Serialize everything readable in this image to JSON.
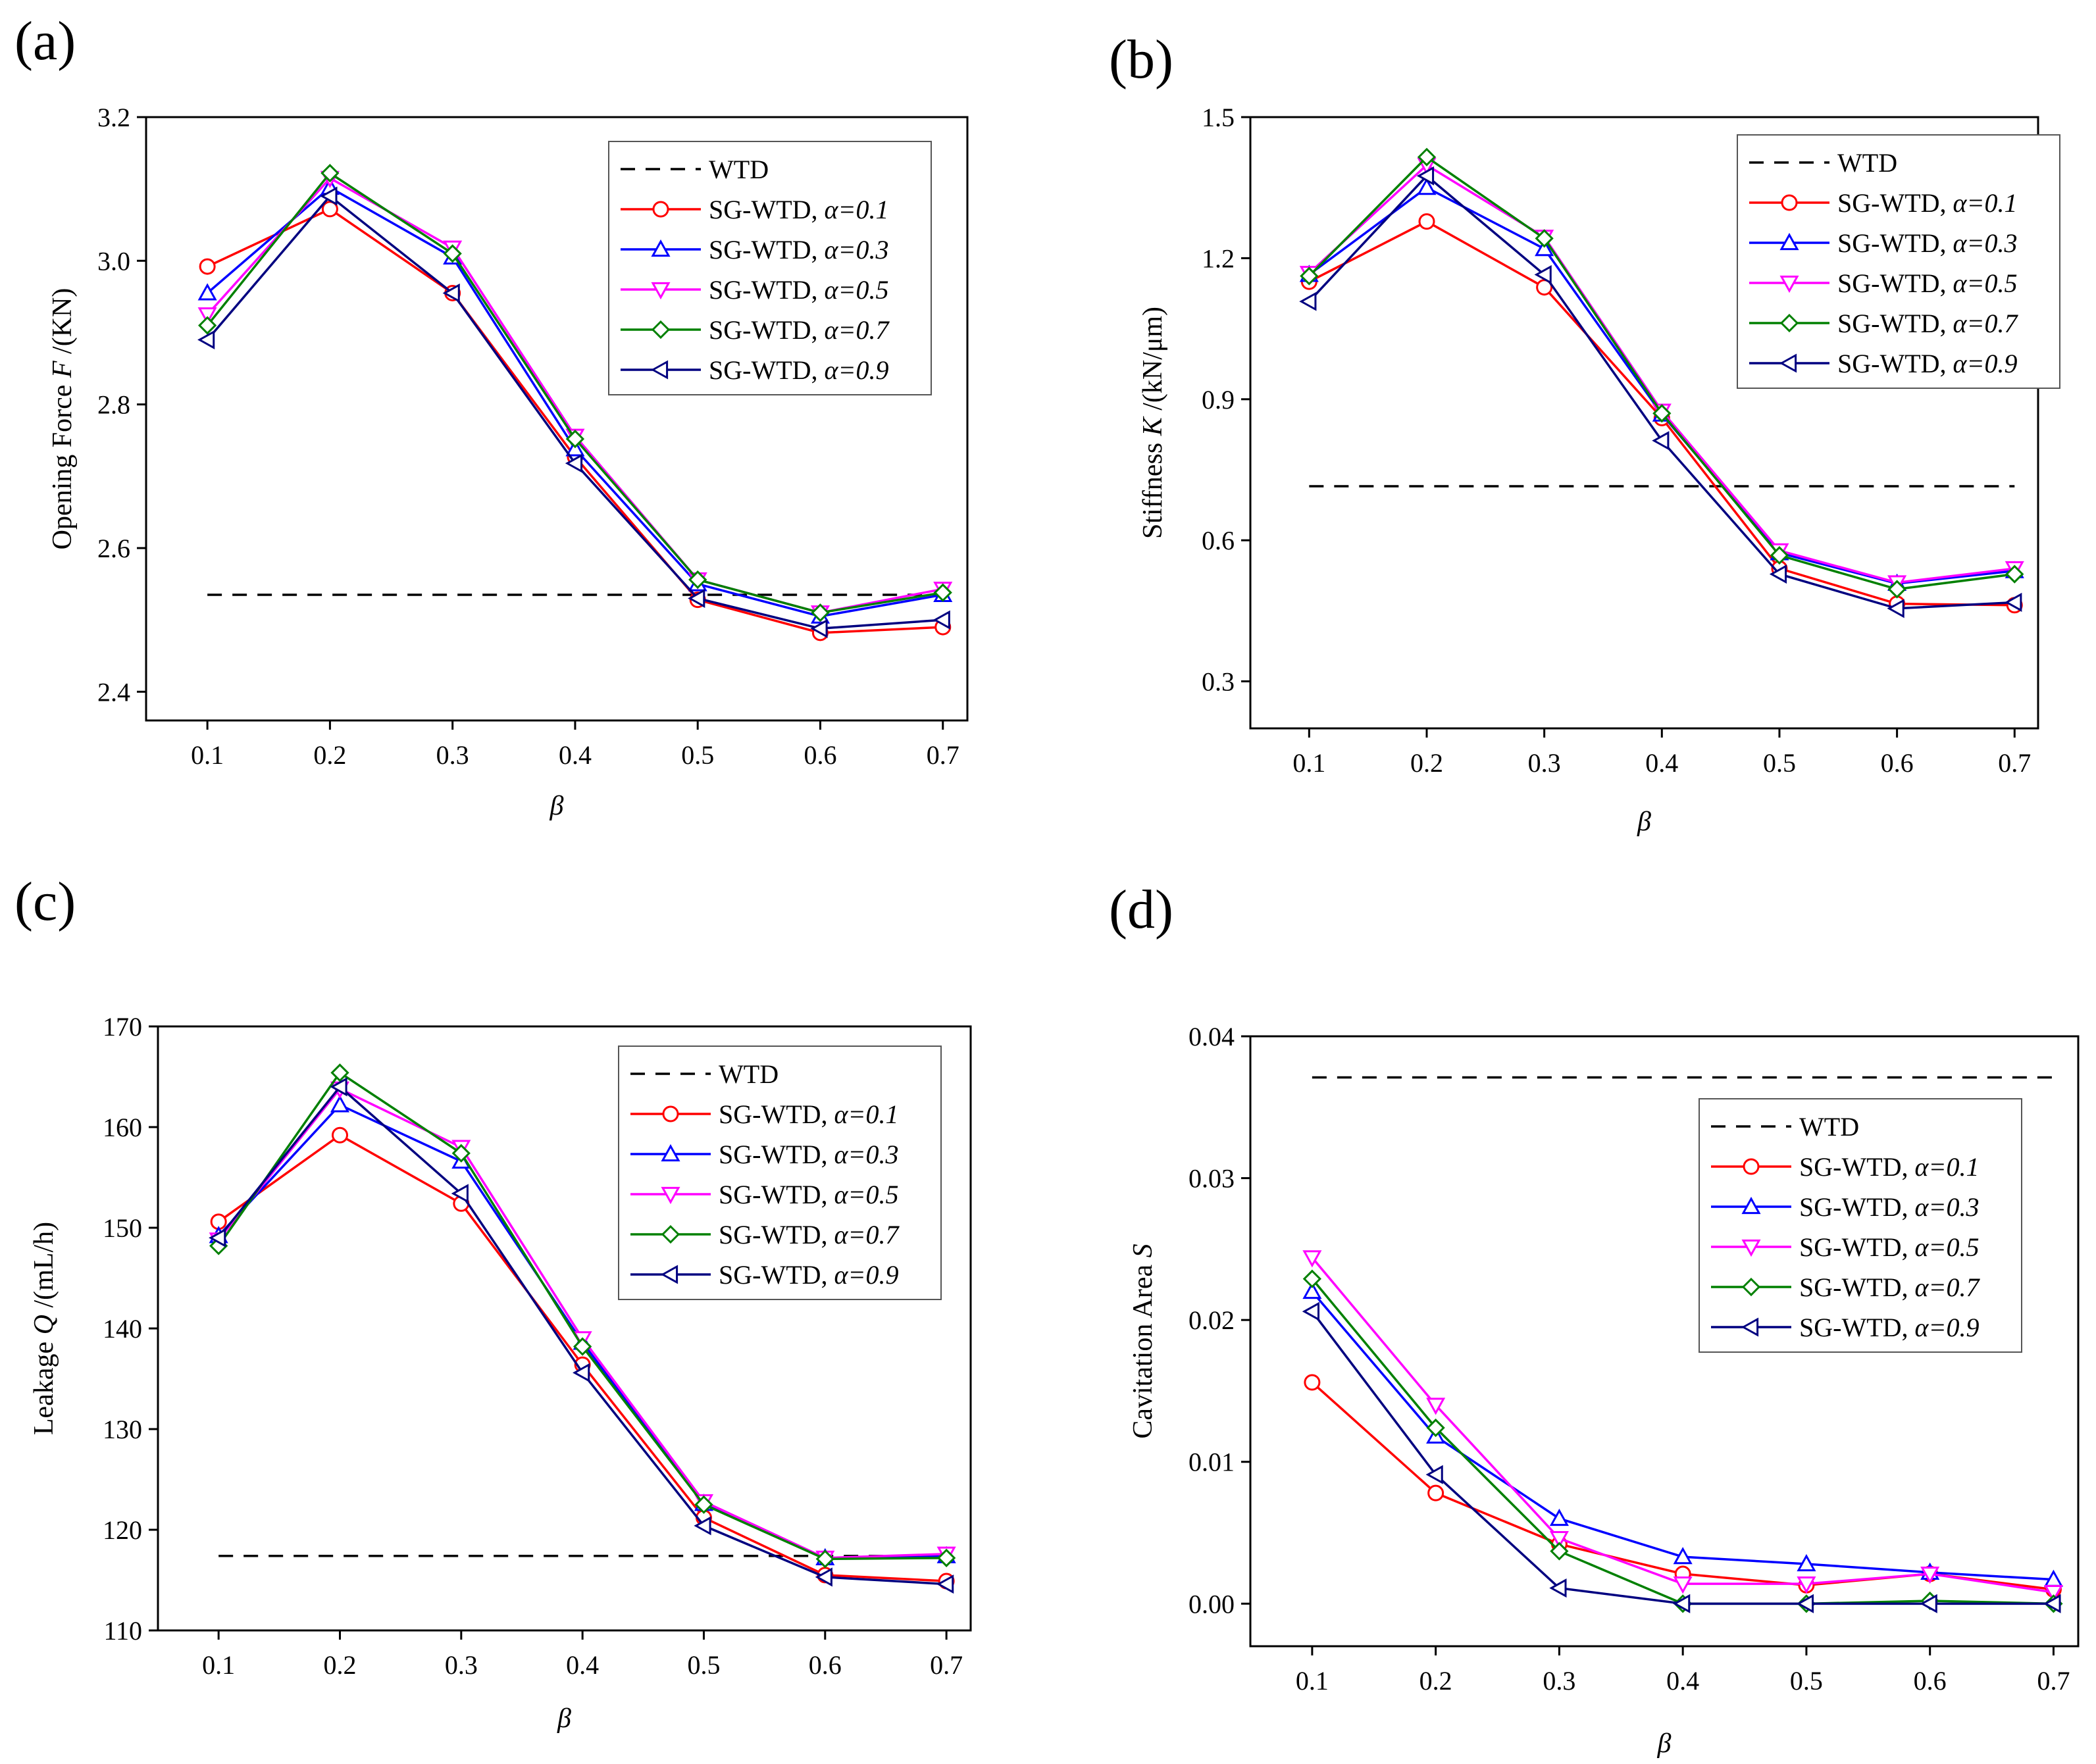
{
  "figure": {
    "panels": [
      "(a)",
      "(b)",
      "(c)",
      "(d)"
    ]
  },
  "colors": {
    "WTD": "#000000",
    "a01": "#ff0000",
    "a03": "#0000ff",
    "a05": "#ff00ff",
    "a07": "#008000",
    "a09": "#000080"
  },
  "chart_data": [
    {
      "type": "line",
      "panel": "(a)",
      "ylabel_prefix": "Opening Force ",
      "ylabel_symbol": "F",
      "ylabel_suffix": " /(KN)",
      "xlabel": "β",
      "x": [
        0.1,
        0.2,
        0.3,
        0.4,
        0.5,
        0.6,
        0.7
      ],
      "xticks": [
        "0.1",
        "0.2",
        "0.3",
        "0.4",
        "0.5",
        "0.6",
        "0.7"
      ],
      "ylim": [
        2.36,
        3.2
      ],
      "yticks": [
        2.4,
        2.6,
        2.8,
        3.0,
        3.2
      ],
      "ytick_labels": [
        "2.4",
        "2.6",
        "2.8",
        "3.0",
        "3.2"
      ],
      "legend_position": "top-right",
      "wtd": {
        "name": "WTD",
        "value": 2.535
      },
      "series": [
        {
          "name": "SG-WTD, ",
          "alpha": "α=0.1",
          "marker": "circle",
          "values": [
            2.992,
            3.072,
            2.955,
            2.727,
            2.528,
            2.482,
            2.49
          ]
        },
        {
          "name": "SG-WTD, ",
          "alpha": "α=0.3",
          "marker": "triangle-up",
          "values": [
            2.955,
            3.102,
            3.005,
            2.738,
            2.55,
            2.505,
            2.535
          ]
        },
        {
          "name": "SG-WTD, ",
          "alpha": "α=0.5",
          "marker": "triangle-down",
          "values": [
            2.925,
            3.115,
            3.018,
            2.756,
            2.556,
            2.51,
            2.543
          ]
        },
        {
          "name": "SG-WTD, ",
          "alpha": "α=0.7",
          "marker": "diamond",
          "values": [
            2.91,
            3.122,
            3.01,
            2.752,
            2.556,
            2.51,
            2.538
          ]
        },
        {
          "name": "SG-WTD, ",
          "alpha": "α=0.9",
          "marker": "triangle-left",
          "values": [
            2.89,
            3.09,
            2.955,
            2.718,
            2.53,
            2.488,
            2.5
          ]
        }
      ]
    },
    {
      "type": "line",
      "panel": "(b)",
      "ylabel_prefix": "Stiffness ",
      "ylabel_symbol": "K",
      "ylabel_suffix": " /(kN/μm)",
      "xlabel": "β",
      "x": [
        0.1,
        0.2,
        0.3,
        0.4,
        0.5,
        0.6,
        0.7
      ],
      "xticks": [
        "0.1",
        "0.2",
        "0.3",
        "0.4",
        "0.5",
        "0.6",
        "0.7"
      ],
      "ylim": [
        0.2,
        1.5
      ],
      "yticks": [
        0.3,
        0.6,
        0.9,
        1.2,
        1.5
      ],
      "ytick_labels": [
        "0.3",
        "0.6",
        "0.9",
        "1.2",
        "1.5"
      ],
      "legend_position": "top-right",
      "wtd": {
        "name": "WTD",
        "value": 0.715
      },
      "series": [
        {
          "name": "SG-WTD, ",
          "alpha": "α=0.1",
          "marker": "circle",
          "values": [
            1.15,
            1.278,
            1.138,
            0.86,
            0.54,
            0.465,
            0.462
          ]
        },
        {
          "name": "SG-WTD, ",
          "alpha": "α=0.3",
          "marker": "triangle-up",
          "values": [
            1.165,
            1.35,
            1.22,
            0.868,
            0.573,
            0.508,
            0.535
          ]
        },
        {
          "name": "SG-WTD, ",
          "alpha": "α=0.5",
          "marker": "triangle-down",
          "values": [
            1.168,
            1.398,
            1.245,
            0.875,
            0.578,
            0.51,
            0.54
          ]
        },
        {
          "name": "SG-WTD, ",
          "alpha": "α=0.7",
          "marker": "diamond",
          "values": [
            1.162,
            1.415,
            1.242,
            0.87,
            0.568,
            0.496,
            0.528
          ]
        },
        {
          "name": "SG-WTD, ",
          "alpha": "α=0.9",
          "marker": "triangle-left",
          "values": [
            1.108,
            1.375,
            1.165,
            0.812,
            0.528,
            0.455,
            0.468
          ]
        }
      ]
    },
    {
      "type": "line",
      "panel": "(c)",
      "ylabel_prefix": "Leakage ",
      "ylabel_symbol": "Q",
      "ylabel_suffix": " /(mL/h)",
      "xlabel": "β",
      "x": [
        0.1,
        0.2,
        0.3,
        0.4,
        0.5,
        0.6,
        0.7
      ],
      "xticks": [
        "0.1",
        "0.2",
        "0.3",
        "0.4",
        "0.5",
        "0.6",
        "0.7"
      ],
      "ylim": [
        110,
        170
      ],
      "yticks": [
        110,
        120,
        130,
        140,
        150,
        160,
        170
      ],
      "ytick_labels": [
        "110",
        "120",
        "130",
        "140",
        "150",
        "160",
        "170"
      ],
      "legend_position": "top-right",
      "wtd": {
        "name": "WTD",
        "value": 117.4
      },
      "series": [
        {
          "name": "SG-WTD, ",
          "alpha": "α=0.1",
          "marker": "circle",
          "values": [
            150.6,
            159.2,
            152.4,
            136.4,
            121.2,
            115.5,
            114.9
          ]
        },
        {
          "name": "SG-WTD, ",
          "alpha": "α=0.3",
          "marker": "triangle-up",
          "values": [
            149.2,
            162.2,
            156.6,
            138.6,
            122.6,
            117.2,
            117.4
          ]
        },
        {
          "name": "SG-WTD, ",
          "alpha": "α=0.5",
          "marker": "triangle-down",
          "values": [
            148.8,
            163.8,
            158.0,
            139.0,
            122.8,
            117.2,
            117.6
          ]
        },
        {
          "name": "SG-WTD, ",
          "alpha": "α=0.7",
          "marker": "diamond",
          "values": [
            148.2,
            165.4,
            157.4,
            138.2,
            122.5,
            117.1,
            117.2
          ]
        },
        {
          "name": "SG-WTD, ",
          "alpha": "α=0.9",
          "marker": "triangle-left",
          "values": [
            149.0,
            164.0,
            153.4,
            135.6,
            120.4,
            115.3,
            114.6
          ]
        }
      ]
    },
    {
      "type": "line",
      "panel": "(d)",
      "ylabel_prefix": "Cavitation Area ",
      "ylabel_symbol": "S",
      "ylabel_suffix": "",
      "xlabel": "β",
      "x": [
        0.1,
        0.2,
        0.3,
        0.4,
        0.5,
        0.6,
        0.7
      ],
      "xticks": [
        "0.1",
        "0.2",
        "0.3",
        "0.4",
        "0.5",
        "0.6",
        "0.7"
      ],
      "ylim": [
        -0.003,
        0.04
      ],
      "yticks": [
        0.0,
        0.01,
        0.02,
        0.03,
        0.04
      ],
      "ytick_labels": [
        "0.00",
        "0.01",
        "0.02",
        "0.03",
        "0.04"
      ],
      "legend_position": "center-right",
      "wtd": {
        "name": "WTD",
        "value": 0.0371
      },
      "series": [
        {
          "name": "SG-WTD, ",
          "alpha": "α=0.1",
          "marker": "circle",
          "values": [
            0.0156,
            0.0078,
            0.0042,
            0.0021,
            0.0013,
            0.0021,
            0.001
          ]
        },
        {
          "name": "SG-WTD, ",
          "alpha": "α=0.3",
          "marker": "triangle-up",
          "values": [
            0.022,
            0.0118,
            0.006,
            0.0033,
            0.0028,
            0.0022,
            0.0017
          ]
        },
        {
          "name": "SG-WTD, ",
          "alpha": "α=0.5",
          "marker": "triangle-down",
          "values": [
            0.0244,
            0.014,
            0.0046,
            0.0014,
            0.0014,
            0.0021,
            0.0008
          ]
        },
        {
          "name": "SG-WTD, ",
          "alpha": "α=0.7",
          "marker": "diamond",
          "values": [
            0.0229,
            0.0124,
            0.0037,
            0.0,
            0.0,
            0.0002,
            0.0
          ]
        },
        {
          "name": "SG-WTD, ",
          "alpha": "α=0.9",
          "marker": "triangle-left",
          "values": [
            0.0206,
            0.0091,
            0.0011,
            0.0,
            0.0,
            0.0,
            0.0
          ]
        }
      ]
    }
  ]
}
